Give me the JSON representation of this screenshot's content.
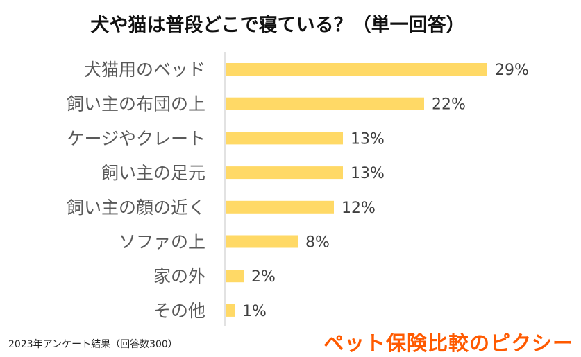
{
  "chart_data": {
    "type": "bar",
    "orientation": "horizontal",
    "title": "犬や猫は普段どこで寝ている？（単一回答）",
    "categories": [
      "犬猫用のベッド",
      "飼い主の布団の上",
      "ケージやクレート",
      "飼い主の足元",
      "飼い主の顔の近く",
      "ソファの上",
      "家の外",
      "その他"
    ],
    "values": [
      29,
      22,
      13,
      13,
      12,
      8,
      2,
      1
    ],
    "value_labels": [
      "29%",
      "22%",
      "13%",
      "13%",
      "12%",
      "8%",
      "2%",
      "1%"
    ],
    "unit": "%",
    "xlim": [
      0,
      30
    ],
    "grid": false,
    "bar_color": "#FFD966"
  },
  "footnote": "2023年アンケート結果（回答数300）",
  "logo_text": "ペット保険比較のピクシー",
  "logo_color": "#FF5A00"
}
